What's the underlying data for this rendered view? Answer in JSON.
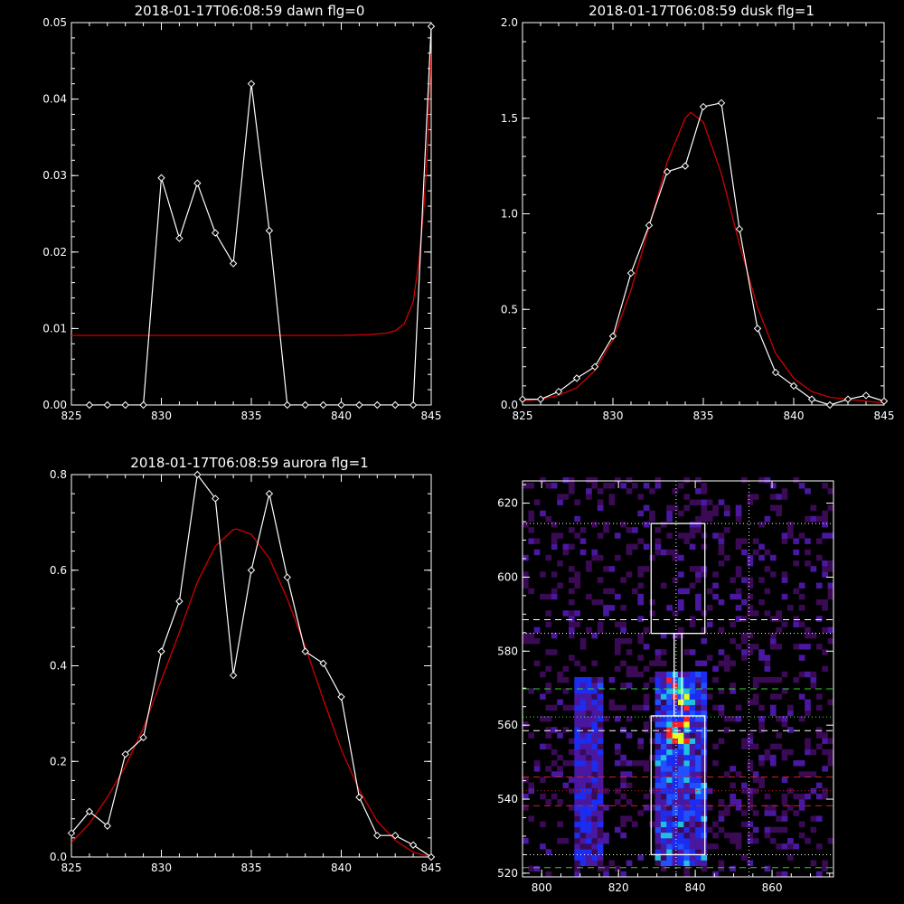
{
  "colors": {
    "background": "#000000",
    "axes": "#ffffff",
    "data_line": "#ffffff",
    "fit_line": "#d00000",
    "heat_low": "#3a0a55",
    "heat_mid": "#2050ff",
    "heat_high": "#30ff60",
    "heat_peak": "#ff2020"
  },
  "chart_data": [
    {
      "type": "line",
      "title": "2018-01-17T06:08:59 dawn flg=0",
      "xlim": [
        825,
        845
      ],
      "ylim": [
        0,
        0.05
      ],
      "xticks": [
        "825",
        "830",
        "835",
        "840",
        "845"
      ],
      "yticks": [
        "0.00",
        "0.01",
        "0.02",
        "0.03",
        "0.04",
        "0.05"
      ],
      "series": [
        {
          "x": [
            826,
            827,
            828,
            829,
            830,
            831,
            832,
            833,
            834,
            835,
            836,
            837,
            838,
            839,
            840,
            841,
            842,
            843,
            844,
            845
          ],
          "values": [
            0,
            0,
            0,
            0,
            0.0297,
            0.0218,
            0.029,
            0.0225,
            0.0185,
            0.042,
            0.0228,
            0,
            0,
            0,
            0,
            0,
            0,
            0,
            0,
            0.0495
          ]
        },
        {
          "x": [
            825,
            840,
            841.5,
            842.5,
            843,
            843.5,
            844,
            844.3,
            844.6,
            844.8,
            845
          ],
          "values": [
            0.0091,
            0.0091,
            0.0092,
            0.0094,
            0.0097,
            0.0106,
            0.0135,
            0.0185,
            0.026,
            0.034,
            0.046
          ]
        }
      ]
    },
    {
      "type": "line",
      "title": "2018-01-17T06:08:59 dusk flg=1",
      "xlim": [
        825,
        845
      ],
      "ylim": [
        0,
        2.0
      ],
      "xticks": [
        "825",
        "830",
        "835",
        "840",
        "845"
      ],
      "yticks": [
        "0.0",
        "0.5",
        "1.0",
        "1.5",
        "2.0"
      ],
      "series": [
        {
          "x": [
            825,
            826,
            827,
            828,
            829,
            830,
            831,
            832,
            833,
            834,
            835,
            836,
            837,
            838,
            839,
            840,
            841,
            842,
            843,
            844,
            845
          ],
          "values": [
            0.03,
            0.03,
            0.07,
            0.14,
            0.2,
            0.36,
            0.69,
            0.94,
            1.22,
            1.25,
            1.56,
            1.58,
            0.92,
            0.4,
            0.17,
            0.1,
            0.03,
            0.0,
            0.03,
            0.05,
            0.02
          ]
        },
        {
          "x": [
            825,
            826,
            827,
            828,
            829,
            830,
            831,
            832,
            833,
            834,
            834.3,
            835,
            836,
            837,
            838,
            839,
            840,
            841,
            842,
            843,
            844,
            845
          ],
          "values": [
            0.02,
            0.03,
            0.05,
            0.09,
            0.18,
            0.34,
            0.6,
            0.93,
            1.27,
            1.5,
            1.53,
            1.48,
            1.21,
            0.84,
            0.51,
            0.27,
            0.14,
            0.07,
            0.04,
            0.03,
            0.02,
            0.01
          ]
        }
      ]
    },
    {
      "type": "line",
      "title": "2018-01-17T06:08:59 aurora flg=1",
      "xlim": [
        825,
        845
      ],
      "ylim": [
        0,
        0.8
      ],
      "xticks": [
        "825",
        "830",
        "835",
        "840",
        "845"
      ],
      "yticks": [
        "0.0",
        "0.2",
        "0.4",
        "0.6",
        "0.8"
      ],
      "series": [
        {
          "x": [
            825,
            826,
            827,
            828,
            829,
            830,
            831,
            832,
            833,
            834,
            835,
            836,
            837,
            838,
            839,
            840,
            841,
            842,
            843,
            844,
            845
          ],
          "values": [
            0.05,
            0.095,
            0.065,
            0.215,
            0.25,
            0.43,
            0.535,
            0.8,
            0.75,
            0.38,
            0.6,
            0.76,
            0.585,
            0.43,
            0.405,
            0.335,
            0.125,
            0.045,
            0.045,
            0.025,
            0.0
          ]
        },
        {
          "x": [
            825,
            826,
            827,
            828,
            829,
            830,
            831,
            832,
            833,
            834,
            834.2,
            835,
            836,
            837,
            838,
            839,
            840,
            841,
            842,
            843,
            844,
            845
          ],
          "values": [
            0.03,
            0.07,
            0.125,
            0.19,
            0.27,
            0.37,
            0.47,
            0.575,
            0.65,
            0.685,
            0.686,
            0.675,
            0.625,
            0.54,
            0.44,
            0.33,
            0.225,
            0.14,
            0.075,
            0.035,
            0.01,
            0.0
          ]
        }
      ]
    },
    {
      "type": "heatmap",
      "title": "",
      "xlim": [
        795,
        876
      ],
      "ylim": [
        519,
        626
      ],
      "xticks": [
        "800",
        "820",
        "840",
        "860"
      ],
      "yticks": [
        "520",
        "540",
        "560",
        "580",
        "600",
        "620"
      ],
      "bands": [
        {
          "x": [
            808,
            816
          ],
          "y": [
            522,
            572
          ],
          "level": 0.45
        },
        {
          "x": [
            829,
            843
          ],
          "y": [
            522,
            574
          ],
          "level": 0.55
        },
        {
          "x": [
            832,
            838
          ],
          "y": [
            555,
            572
          ],
          "level": 0.85
        }
      ],
      "boxes": [
        {
          "x": [
            828.5,
            842.5
          ],
          "y": [
            525,
            562.5
          ]
        },
        {
          "x": [
            828.5,
            842.5
          ],
          "y": [
            584.8,
            614.5
          ]
        },
        {
          "x": [
            834.5,
            836.5
          ],
          "y": [
            562.5,
            584.8
          ]
        }
      ],
      "hlines": [
        {
          "y": 614.5,
          "style": "dotted",
          "color": "#ffffff"
        },
        {
          "y": 588.5,
          "style": "dashed",
          "color": "#ffffff"
        },
        {
          "y": 584.8,
          "style": "dotted",
          "color": "#ffffff"
        },
        {
          "y": 569.8,
          "style": "dashed",
          "color": "#30d030"
        },
        {
          "y": 562.2,
          "style": "dotted",
          "color": "#30ff30"
        },
        {
          "y": 558.5,
          "style": "dashed",
          "color": "#ffffff"
        },
        {
          "y": 546,
          "style": "dashed",
          "color": "#d02020"
        },
        {
          "y": 542.3,
          "style": "dotted",
          "color": "#d02020"
        },
        {
          "y": 538.2,
          "style": "dashed",
          "color": "#d02020"
        },
        {
          "y": 525,
          "style": "dotted",
          "color": "#ffffff"
        },
        {
          "y": 521.5,
          "style": "dashed",
          "color": "#30d030"
        }
      ],
      "vlines": [
        {
          "x": 835,
          "style": "dotted",
          "color": "#ffffff"
        },
        {
          "x": 854,
          "style": "dotted",
          "color": "#ffffff"
        }
      ]
    }
  ]
}
